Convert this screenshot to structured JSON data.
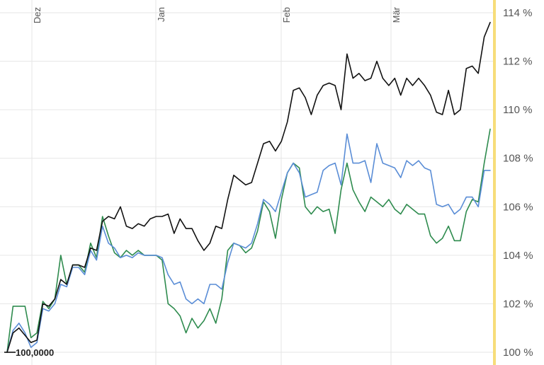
{
  "chart_data": {
    "type": "line",
    "title": "",
    "xlabel": "",
    "ylabel": "",
    "x_ticks": [
      "Dez",
      "Jan",
      "Feb",
      "Mär"
    ],
    "y_ticks": [
      "100 %",
      "102 %",
      "104 %",
      "106 %",
      "108 %",
      "110 %",
      "112 %",
      "114 %"
    ],
    "ylim": [
      100,
      114
    ],
    "base_label": "100,0000",
    "marker_color": "#f7dd7a",
    "grid": true,
    "series": [
      {
        "color": "#111111",
        "values": [
          100.0,
          100.8,
          101.0,
          100.7,
          100.4,
          100.5,
          102.0,
          101.9,
          102.2,
          103.0,
          102.8,
          103.6,
          103.6,
          103.5,
          104.3,
          104.2,
          105.4,
          105.6,
          105.5,
          106.0,
          105.2,
          105.1,
          105.3,
          105.2,
          105.5,
          105.6,
          105.6,
          105.7,
          104.9,
          105.5,
          105.1,
          105.1,
          104.6,
          104.2,
          104.5,
          105.2,
          105.1,
          106.3,
          107.3,
          107.1,
          106.9,
          107.0,
          107.8,
          108.6,
          108.7,
          108.3,
          108.7,
          109.5,
          110.8,
          110.9,
          110.5,
          109.8,
          110.6,
          111.0,
          111.1,
          111.0,
          110.0,
          112.3,
          111.3,
          111.5,
          111.2,
          111.3,
          112.0,
          111.3,
          111.0,
          111.3,
          110.6,
          111.3,
          111.0,
          111.3,
          111.0,
          110.6,
          109.9,
          109.8,
          110.8,
          109.8,
          110.0,
          111.7,
          111.8,
          111.5,
          113.0,
          113.6
        ]
      },
      {
        "color": "#5a8dd6",
        "values": [
          100.0,
          100.9,
          101.2,
          100.8,
          100.2,
          100.4,
          101.8,
          101.7,
          102.0,
          102.8,
          102.7,
          103.5,
          103.5,
          103.2,
          104.2,
          103.8,
          105.2,
          104.5,
          104.3,
          103.9,
          104.0,
          103.9,
          104.1,
          104.0,
          104.0,
          104.0,
          103.9,
          103.2,
          102.8,
          102.9,
          102.2,
          102.0,
          102.2,
          102.0,
          102.8,
          102.8,
          102.6,
          103.7,
          104.5,
          104.4,
          104.3,
          104.5,
          105.3,
          106.3,
          106.1,
          105.8,
          106.6,
          107.4,
          107.8,
          107.4,
          106.4,
          106.5,
          106.6,
          107.5,
          107.7,
          107.8,
          106.9,
          109.0,
          107.8,
          107.8,
          107.9,
          107.0,
          108.6,
          107.8,
          107.7,
          107.6,
          107.2,
          107.9,
          107.7,
          107.9,
          107.6,
          107.5,
          106.1,
          106.0,
          106.1,
          105.7,
          105.9,
          106.4,
          106.4,
          106.0,
          107.5,
          107.5
        ]
      },
      {
        "color": "#2e8b4e",
        "values": [
          100.0,
          101.9,
          101.9,
          101.9,
          100.6,
          100.8,
          102.1,
          101.8,
          102.2,
          104.0,
          102.8,
          103.6,
          103.6,
          103.3,
          104.5,
          103.9,
          105.6,
          104.8,
          104.1,
          103.9,
          104.2,
          104.0,
          104.2,
          104.0,
          104.0,
          104.0,
          103.8,
          102.0,
          101.8,
          101.5,
          100.8,
          101.4,
          101.0,
          101.3,
          101.8,
          101.2,
          102.2,
          104.2,
          104.5,
          104.4,
          104.1,
          104.3,
          105.0,
          106.2,
          105.8,
          104.7,
          106.3,
          107.4,
          107.8,
          107.6,
          106.0,
          105.7,
          106.0,
          105.8,
          105.9,
          104.9,
          106.7,
          107.8,
          106.7,
          106.2,
          105.8,
          106.4,
          106.2,
          106.0,
          106.3,
          105.9,
          105.7,
          106.1,
          105.9,
          105.7,
          105.7,
          104.8,
          104.5,
          104.7,
          105.2,
          104.6,
          104.6,
          105.8,
          106.3,
          106.2,
          107.8,
          109.2
        ]
      }
    ]
  }
}
